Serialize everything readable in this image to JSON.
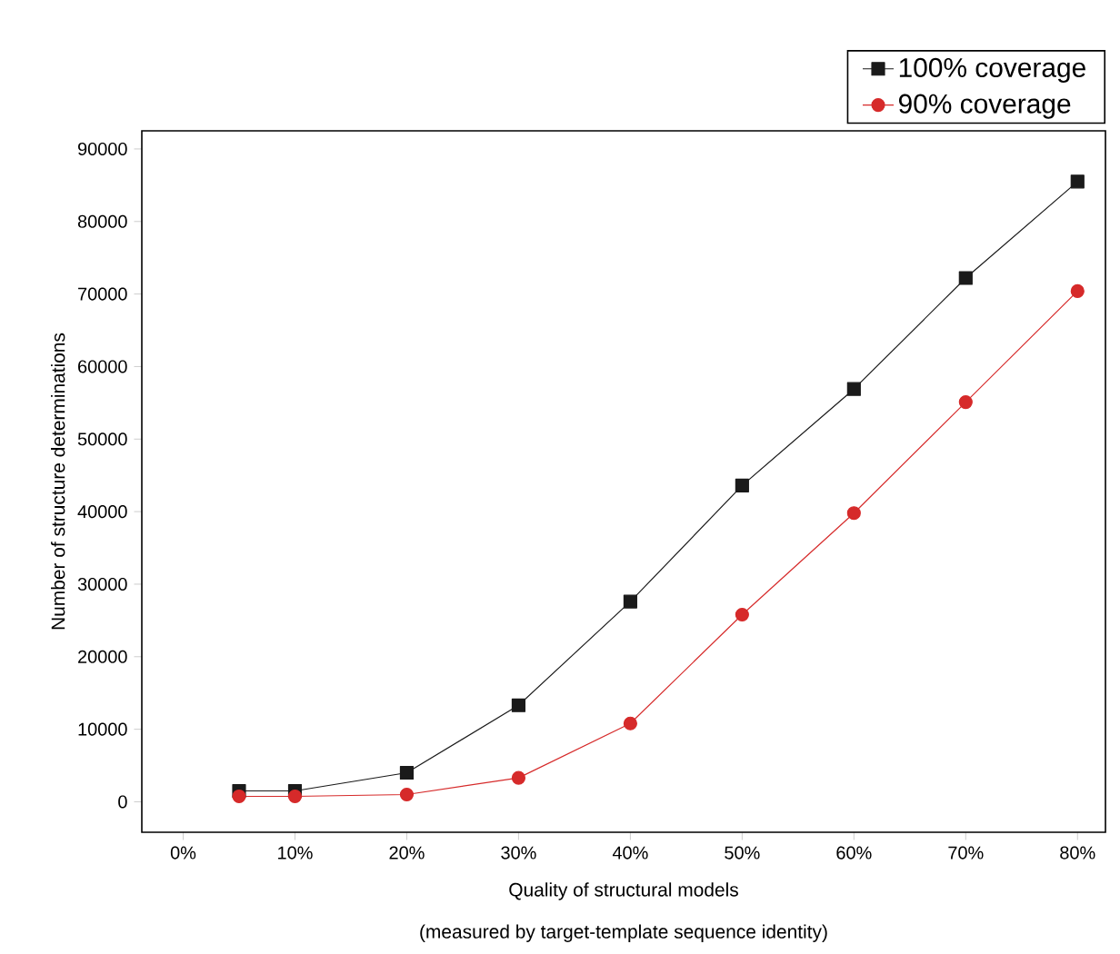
{
  "chart_data": {
    "type": "line",
    "xlabel": "Quality of structural models",
    "ylabel": "Number of structure determinations",
    "annotations": [
      "(measured by target-template sequence identity)"
    ],
    "x": [
      5,
      10,
      20,
      30,
      40,
      50,
      60,
      70,
      80
    ],
    "series": [
      {
        "name": "100%  coverage",
        "color": "#1a1a1a",
        "marker": "square",
        "values": [
          1500,
          1500,
          4000,
          13300,
          27600,
          43600,
          56900,
          72200,
          85500
        ]
      },
      {
        "name": "90% coverage",
        "color": "#d62a2a",
        "marker": "circle",
        "values": [
          750,
          750,
          1000,
          3300,
          10800,
          25800,
          39800,
          55100,
          70400
        ]
      }
    ],
    "xlim": [
      -3.7,
      82.5
    ],
    "ylim": [
      -4200,
      92500
    ],
    "xticks": [
      {
        "value": 0,
        "label": "0%"
      },
      {
        "value": 10,
        "label": "10%"
      },
      {
        "value": 20,
        "label": "20%"
      },
      {
        "value": 30,
        "label": "30%"
      },
      {
        "value": 40,
        "label": "40%"
      },
      {
        "value": 50,
        "label": "50%"
      },
      {
        "value": 60,
        "label": "60%"
      },
      {
        "value": 70,
        "label": "70%"
      },
      {
        "value": 80,
        "label": "80%"
      }
    ],
    "yticks": [
      0,
      10000,
      20000,
      30000,
      40000,
      50000,
      60000,
      70000,
      80000,
      90000
    ],
    "legend": "top right",
    "line_style": "solid"
  }
}
